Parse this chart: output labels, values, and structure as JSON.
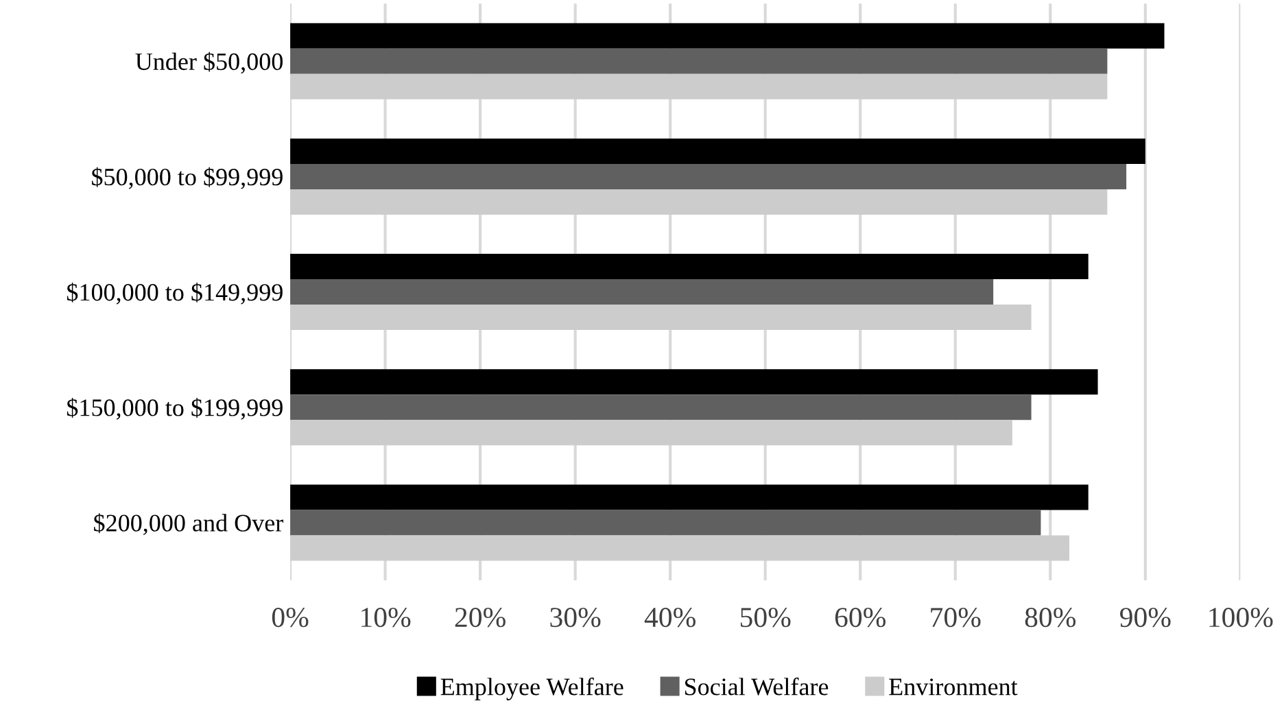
{
  "chart_data": {
    "type": "bar",
    "orientation": "horizontal",
    "categories": [
      "Under $50,000",
      "$50,000 to $99,999",
      "$100,000 to $149,999",
      "$150,000 to $199,999",
      "$200,000 and Over"
    ],
    "series": [
      {
        "name": "Employee Welfare",
        "color": "#000000",
        "values": [
          92,
          90,
          84,
          85,
          84
        ]
      },
      {
        "name": "Social Welfare",
        "color": "#606060",
        "values": [
          86,
          88,
          74,
          78,
          79
        ]
      },
      {
        "name": "Environment",
        "color": "#cccccc",
        "values": [
          86,
          86,
          78,
          76,
          82
        ]
      }
    ],
    "xlim": [
      0,
      100
    ],
    "xticks": [
      {
        "value": 0,
        "label": "0%"
      },
      {
        "value": 10,
        "label": "10%"
      },
      {
        "value": 20,
        "label": "20%"
      },
      {
        "value": 30,
        "label": "30%"
      },
      {
        "value": 40,
        "label": "40%"
      },
      {
        "value": 50,
        "label": "50%"
      },
      {
        "value": 60,
        "label": "60%"
      },
      {
        "value": 70,
        "label": "70%"
      },
      {
        "value": 80,
        "label": "80%"
      },
      {
        "value": 90,
        "label": "90%"
      },
      {
        "value": 100,
        "label": "100%"
      }
    ],
    "grid": "x",
    "legend": "bottom"
  }
}
